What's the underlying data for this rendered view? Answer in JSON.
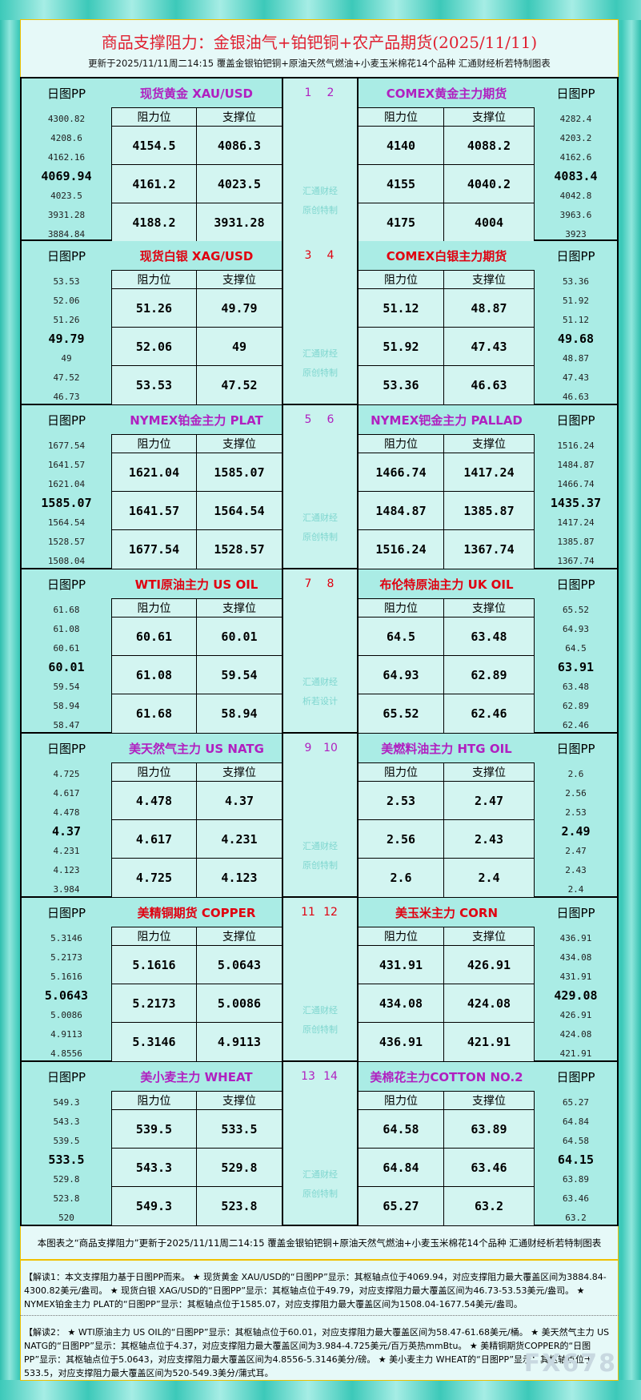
{
  "header": {
    "title": "商品支撑阻力：金银油气+铂钯铜+农产品期货(2025/11/11)",
    "subtitle": "更新于2025/11/11周二14:15 覆盖金银铂钯铜+原油天然气燃油+小麦玉米棉花14个品种 汇通财经析若特制图表"
  },
  "labels": {
    "pp": "日图PP",
    "resistance": "阻力位",
    "support": "支撑位"
  },
  "colors": {
    "purple": "#b020c0",
    "red": "#e00010"
  },
  "blocks": [
    {
      "num": [
        "1",
        "2"
      ],
      "color": "purple",
      "watermark": [
        "汇通财经",
        "原创特制"
      ],
      "left": {
        "name": "现货黄金 XAU/USD",
        "pp": [
          "4300.82",
          "4208.6",
          "4162.16",
          "4069.94",
          "4023.5",
          "3931.28",
          "3884.84"
        ],
        "res": [
          "4154.5",
          "4161.2",
          "4188.2"
        ],
        "sup": [
          "4086.3",
          "4023.5",
          "3931.28"
        ]
      },
      "right": {
        "name": "COMEX黄金主力期货",
        "pp": [
          "4282.4",
          "4203.2",
          "4162.6",
          "4083.4",
          "4042.8",
          "3963.6",
          "3923"
        ],
        "res": [
          "4140",
          "4155",
          "4175"
        ],
        "sup": [
          "4088.2",
          "4040.2",
          "4004"
        ]
      }
    },
    {
      "num": [
        "3",
        "4"
      ],
      "color": "red",
      "watermark": [
        "汇通财经",
        "原创特制"
      ],
      "left": {
        "name": "现货白银 XAG/USD",
        "pp": [
          "53.53",
          "52.06",
          "51.26",
          "49.79",
          "49",
          "47.52",
          "46.73"
        ],
        "res": [
          "51.26",
          "52.06",
          "53.53"
        ],
        "sup": [
          "49.79",
          "49",
          "47.52"
        ]
      },
      "right": {
        "name": "COMEX白银主力期货",
        "pp": [
          "53.36",
          "51.92",
          "51.12",
          "49.68",
          "48.87",
          "47.43",
          "46.63"
        ],
        "res": [
          "51.12",
          "51.92",
          "53.36"
        ],
        "sup": [
          "48.87",
          "47.43",
          "46.63"
        ]
      }
    },
    {
      "num": [
        "5",
        "6"
      ],
      "color": "purple",
      "watermark": [
        "汇通财经",
        "原创特制"
      ],
      "left": {
        "name": "NYMEX铂金主力 PLAT",
        "pp": [
          "1677.54",
          "1641.57",
          "1621.04",
          "1585.07",
          "1564.54",
          "1528.57",
          "1508.04"
        ],
        "res": [
          "1621.04",
          "1641.57",
          "1677.54"
        ],
        "sup": [
          "1585.07",
          "1564.54",
          "1528.57"
        ]
      },
      "right": {
        "name": "NYMEX钯金主力 PALLAD",
        "pp": [
          "1516.24",
          "1484.87",
          "1466.74",
          "1435.37",
          "1417.24",
          "1385.87",
          "1367.74"
        ],
        "res": [
          "1466.74",
          "1484.87",
          "1516.24"
        ],
        "sup": [
          "1417.24",
          "1385.87",
          "1367.74"
        ]
      }
    },
    {
      "num": [
        "7",
        "8"
      ],
      "color": "red",
      "watermark": [
        "汇通财经",
        "析若设计"
      ],
      "left": {
        "name": "WTI原油主力 US OIL",
        "pp": [
          "61.68",
          "61.08",
          "60.61",
          "60.01",
          "59.54",
          "58.94",
          "58.47"
        ],
        "res": [
          "60.61",
          "61.08",
          "61.68"
        ],
        "sup": [
          "60.01",
          "59.54",
          "58.94"
        ]
      },
      "right": {
        "name": "布伦特原油主力 UK OIL",
        "pp": [
          "65.52",
          "64.93",
          "64.5",
          "63.91",
          "63.48",
          "62.89",
          "62.46"
        ],
        "res": [
          "64.5",
          "64.93",
          "65.52"
        ],
        "sup": [
          "63.48",
          "62.89",
          "62.46"
        ]
      }
    },
    {
      "num": [
        "9",
        "10"
      ],
      "color": "purple",
      "watermark": [
        "汇通财经",
        "原创特制"
      ],
      "left": {
        "name": "美天然气主力 US NATG",
        "pp": [
          "4.725",
          "4.617",
          "4.478",
          "4.37",
          "4.231",
          "4.123",
          "3.984"
        ],
        "res": [
          "4.478",
          "4.617",
          "4.725"
        ],
        "sup": [
          "4.37",
          "4.231",
          "4.123"
        ]
      },
      "right": {
        "name": "美燃料油主力 HTG OIL",
        "pp": [
          "2.6",
          "2.56",
          "2.53",
          "2.49",
          "2.47",
          "2.43",
          "2.4"
        ],
        "res": [
          "2.53",
          "2.56",
          "2.6"
        ],
        "sup": [
          "2.47",
          "2.43",
          "2.4"
        ]
      }
    },
    {
      "num": [
        "11",
        "12"
      ],
      "color": "red",
      "watermark": [
        "汇通财经",
        "原创特制"
      ],
      "left": {
        "name": "美精铜期货 COPPER",
        "pp": [
          "5.3146",
          "5.2173",
          "5.1616",
          "5.0643",
          "5.0086",
          "4.9113",
          "4.8556"
        ],
        "res": [
          "5.1616",
          "5.2173",
          "5.3146"
        ],
        "sup": [
          "5.0643",
          "5.0086",
          "4.9113"
        ]
      },
      "right": {
        "name": "美玉米主力 CORN",
        "pp": [
          "436.91",
          "434.08",
          "431.91",
          "429.08",
          "426.91",
          "424.08",
          "421.91"
        ],
        "res": [
          "431.91",
          "434.08",
          "436.91"
        ],
        "sup": [
          "426.91",
          "424.08",
          "421.91"
        ]
      }
    },
    {
      "num": [
        "13",
        "14"
      ],
      "color": "purple",
      "watermark": [
        "汇通财经",
        "原创特制"
      ],
      "left": {
        "name": "美小麦主力 WHEAT",
        "pp": [
          "549.3",
          "543.3",
          "539.5",
          "533.5",
          "529.8",
          "523.8",
          "520"
        ],
        "res": [
          "539.5",
          "543.3",
          "549.3"
        ],
        "sup": [
          "533.5",
          "529.8",
          "523.8"
        ]
      },
      "right": {
        "name": "美棉花主力COTTON NO.2",
        "pp": [
          "65.27",
          "64.84",
          "64.58",
          "64.15",
          "63.89",
          "63.46",
          "63.2"
        ],
        "res": [
          "64.58",
          "64.84",
          "65.27"
        ],
        "sup": [
          "63.89",
          "63.46",
          "63.2"
        ]
      }
    }
  ],
  "footer": {
    "summary": "本图表之“商品支撑阻力”更新于2025/11/11周二14:15 覆盖金银铂钯铜+原油天然气燃油+小麦玉米棉花14个品种 汇通财经析若特制图表",
    "note1": "【解读1：本文支撑阻力基于日图PP而来。 ★ 现货黄金 XAU/USD的“日图PP”显示：其枢轴点位于4069.94，对应支撑阻力最大覆盖区间为3884.84-4300.82美元/盎司。 ★ 现货白银 XAG/USD的“日图PP”显示：其枢轴点位于49.79，对应支撑阻力最大覆盖区间为46.73-53.53美元/盎司。 ★ NYMEX铂金主力 PLAT的“日图PP”显示：其枢轴点位于1585.07，对应支撑阻力最大覆盖区间为1508.04-1677.54美元/盎司。",
    "note2": "【解读2： ★ WTI原油主力 US OIL的“日图PP”显示：其枢轴点位于60.01，对应支撑阻力最大覆盖区间为58.47-61.68美元/桶。 ★ 美天然气主力 US NATG的“日图PP”显示：其枢轴点位于4.37，对应支撑阻力最大覆盖区间为3.984-4.725美元/百万英热mmBtu。 ★ 美精铜期货COPPER的“日图PP”显示：其枢轴点位于5.0643，对应支撑阻力最大覆盖区间为4.8556-5.3146美分/磅。 ★ 美小麦主力 WHEAT的“日图PP”显示：其枢轴点位于533.5，对应支撑阻力最大覆盖区间为520-549.3美分/蒲式耳。",
    "watermark": "FX678"
  }
}
